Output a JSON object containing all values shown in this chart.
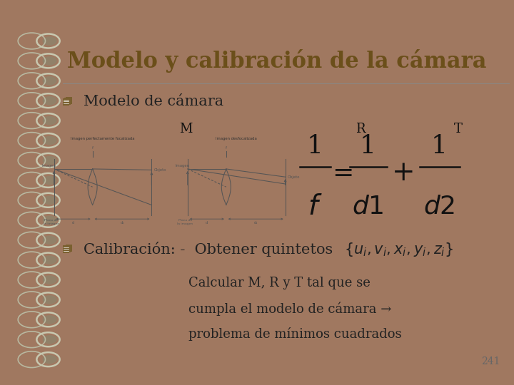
{
  "title": "Modelo y calibración de la cámara",
  "title_color": "#6B4F1A",
  "title_fontsize": 22,
  "bg_slide": "#F8F4E8",
  "bg_left_strip": "#A07860",
  "bg_top_strip": "#D4907A",
  "bullet_color": "#7A6030",
  "text_color": "#222222",
  "separator_color": "#888888",
  "bullet1": "Modelo de cámara",
  "bullet1_fontsize": 15,
  "label_M": "M",
  "label_R": "R",
  "label_T": "T",
  "bullet2_pre": "Calibración: -  Obtener quintetos ",
  "bullet2_fontsize": 15,
  "calc_line1": "Calcular M, R y T tal que se",
  "calc_line2": "cumpla el modelo de cámara →",
  "calc_line3": "problema de mínimos cuadrados",
  "calc_fontsize": 13,
  "page_number": "241",
  "page_fontsize": 10,
  "n_coils": 17,
  "coil_color": "#C8C8B0",
  "coil_shadow": "#888870"
}
